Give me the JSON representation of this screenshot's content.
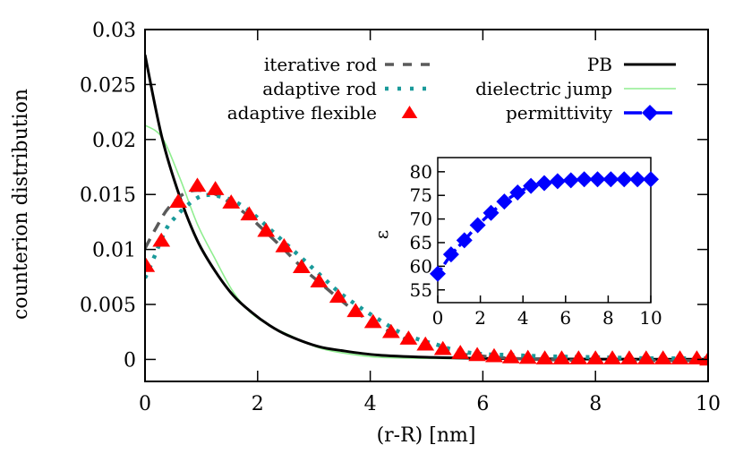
{
  "chart_data": {
    "type": "line",
    "title": "",
    "xlabel": "(r-R) [nm]",
    "ylabel": "counterion distribution",
    "xlim": [
      0,
      10
    ],
    "ylim": [
      -0.002,
      0.03
    ],
    "xticks": [
      0,
      2,
      4,
      6,
      8,
      10
    ],
    "yticks": [
      0,
      0.005,
      0.01,
      0.015,
      0.02,
      0.025,
      0.03
    ],
    "xtick_labels": [
      "0",
      "2",
      "4",
      "6",
      "8",
      "10"
    ],
    "ytick_labels": [
      "0",
      "0.005",
      "0.01",
      "0.015",
      "0.02",
      "0.025",
      "0.03"
    ],
    "grid": false,
    "legend_position": "top",
    "series": [
      {
        "name": "iterative rod",
        "style": "dashed",
        "color": "#5a5a5a",
        "x": [
          0,
          0.2,
          0.42,
          0.74,
          1.1,
          1.4,
          1.8,
          2.1,
          2.45,
          2.8,
          3.1,
          3.45,
          3.75,
          4.05,
          4.4,
          4.7,
          5.0,
          5.3,
          5.6,
          6.0,
          6.5,
          7.0,
          8.0,
          9.0,
          10.0
        ],
        "y": [
          0.0101,
          0.012,
          0.0138,
          0.0152,
          0.0153,
          0.0146,
          0.0132,
          0.0118,
          0.0101,
          0.0083,
          0.007,
          0.0055,
          0.0043,
          0.0033,
          0.0024,
          0.0017,
          0.0012,
          0.0008,
          0.0005,
          0.0003,
          0.0001,
          0.0,
          -0.0001,
          -0.0001,
          -0.0001
        ]
      },
      {
        "name": "adaptive rod",
        "style": "dotted",
        "color": "#1a9a9a",
        "x": [
          0,
          0.13,
          0.37,
          0.55,
          0.77,
          1.03,
          1.35,
          1.65,
          1.95,
          2.25,
          2.55,
          2.85,
          3.15,
          3.45,
          3.8,
          4.1,
          4.55,
          4.87,
          5.17,
          5.46,
          5.78,
          6.1,
          6.5,
          7.0,
          8.0,
          9.0,
          10.0
        ],
        "y": [
          0.0074,
          0.0089,
          0.0118,
          0.013,
          0.0141,
          0.0149,
          0.0148,
          0.0142,
          0.0131,
          0.0117,
          0.0103,
          0.0089,
          0.0075,
          0.0061,
          0.0048,
          0.0038,
          0.0024,
          0.0018,
          0.00136,
          0.0009,
          0.0006,
          0.00046,
          0.0004,
          0.0003,
          0.0002,
          0.0001,
          0.0001
        ]
      },
      {
        "name": "adaptive flexible",
        "style": "markers",
        "marker": "triangle",
        "color": "#ff0000",
        "x": [
          0.02,
          0.29,
          0.59,
          0.93,
          1.25,
          1.53,
          1.85,
          2.15,
          2.47,
          2.78,
          3.09,
          3.43,
          3.74,
          4.05,
          4.37,
          4.68,
          4.98,
          5.29,
          5.6,
          5.9,
          6.2,
          6.5,
          6.8,
          7.1,
          7.4,
          7.7,
          8.0,
          8.3,
          8.6,
          8.9,
          9.2,
          9.5,
          9.8,
          10.0
        ],
        "y": [
          0.0085,
          0.0108,
          0.01435,
          0.0158,
          0.0155,
          0.01427,
          0.0132,
          0.0117,
          0.0103,
          0.0084,
          0.0071,
          0.0057,
          0.0044,
          0.0034,
          0.0025,
          0.0019,
          0.00136,
          0.00095,
          0.0006,
          0.0004,
          0.0003,
          0.0002,
          0.00015,
          0.0001,
          0.0001,
          0.0001,
          0.0001,
          0.0001,
          0.0001,
          0.0001,
          0.0001,
          0.0001,
          0.0001,
          0.0
        ]
      },
      {
        "name": "PB",
        "style": "solid",
        "color": "#000000",
        "x": [
          0,
          0.3,
          0.61,
          0.93,
          1.25,
          1.57,
          1.89,
          2.21,
          2.53,
          3.06,
          3.5,
          4.13,
          5.0,
          6.0,
          7.0,
          8.0,
          9.0,
          10.0
        ],
        "y": [
          0.0277,
          0.0202,
          0.0149,
          0.0108,
          0.008,
          0.0058,
          0.0043,
          0.0031,
          0.0022,
          0.0012,
          0.0008,
          0.0004,
          0.0002,
          0.0001,
          5e-05,
          3e-05,
          2e-05,
          1e-05
        ]
      },
      {
        "name": "dielectric jump",
        "style": "solid-thin",
        "color": "#90ee90",
        "x": [
          0,
          0.3,
          0.61,
          0.93,
          1.25,
          1.57,
          1.89,
          2.21,
          2.53,
          3.06,
          3.5,
          4.13,
          5.0,
          6.0,
          7.0,
          8.0,
          9.0,
          10.0
        ],
        "y": [
          0.0213,
          0.0202,
          0.0166,
          0.0123,
          0.0091,
          0.0061,
          0.0042,
          0.0031,
          0.0023,
          0.0011,
          0.0006,
          0.0002,
          0.0001,
          5e-05,
          2e-05,
          0.0,
          0.0,
          0.0
        ]
      }
    ],
    "legend": [
      {
        "label": "iterative rod",
        "style": "dashed",
        "color": "#5a5a5a"
      },
      {
        "label": "adaptive rod",
        "style": "dotted",
        "color": "#1a9a9a"
      },
      {
        "label": "adaptive flexible",
        "style": "markers",
        "marker": "triangle",
        "color": "#ff0000"
      },
      {
        "label": "PB",
        "style": "solid",
        "color": "#000000"
      },
      {
        "label": "dielectric jump",
        "style": "solid-thin",
        "color": "#90ee90"
      },
      {
        "label": "permittivity",
        "style": "dashed-markers",
        "marker": "diamond",
        "color": "#0000ff"
      }
    ],
    "inset": {
      "type": "line",
      "xlabel": "",
      "ylabel": "ε",
      "xlim": [
        0,
        10
      ],
      "ylim": [
        52.3,
        83
      ],
      "xticks": [
        0,
        2,
        4,
        6,
        8,
        10
      ],
      "yticks": [
        55,
        60,
        65,
        70,
        75,
        80
      ],
      "xtick_labels": [
        "0",
        "2",
        "4",
        "6",
        "8",
        "10"
      ],
      "ytick_labels": [
        "55",
        "60",
        "65",
        "70",
        "75",
        "80"
      ],
      "series": [
        {
          "name": "permittivity",
          "style": "dashed-markers",
          "marker": "diamond",
          "color": "#0000ff",
          "x": [
            0,
            0.625,
            1.25,
            1.875,
            2.5,
            3.125,
            3.75,
            4.375,
            5.0,
            5.625,
            6.25,
            6.875,
            7.5,
            8.125,
            8.75,
            9.375,
            10.0
          ],
          "y": [
            58.4,
            62.5,
            65.5,
            68.7,
            71.3,
            73.7,
            75.6,
            77.0,
            77.6,
            78.0,
            78.2,
            78.4,
            78.4,
            78.4,
            78.4,
            78.4,
            78.4
          ]
        }
      ]
    }
  }
}
